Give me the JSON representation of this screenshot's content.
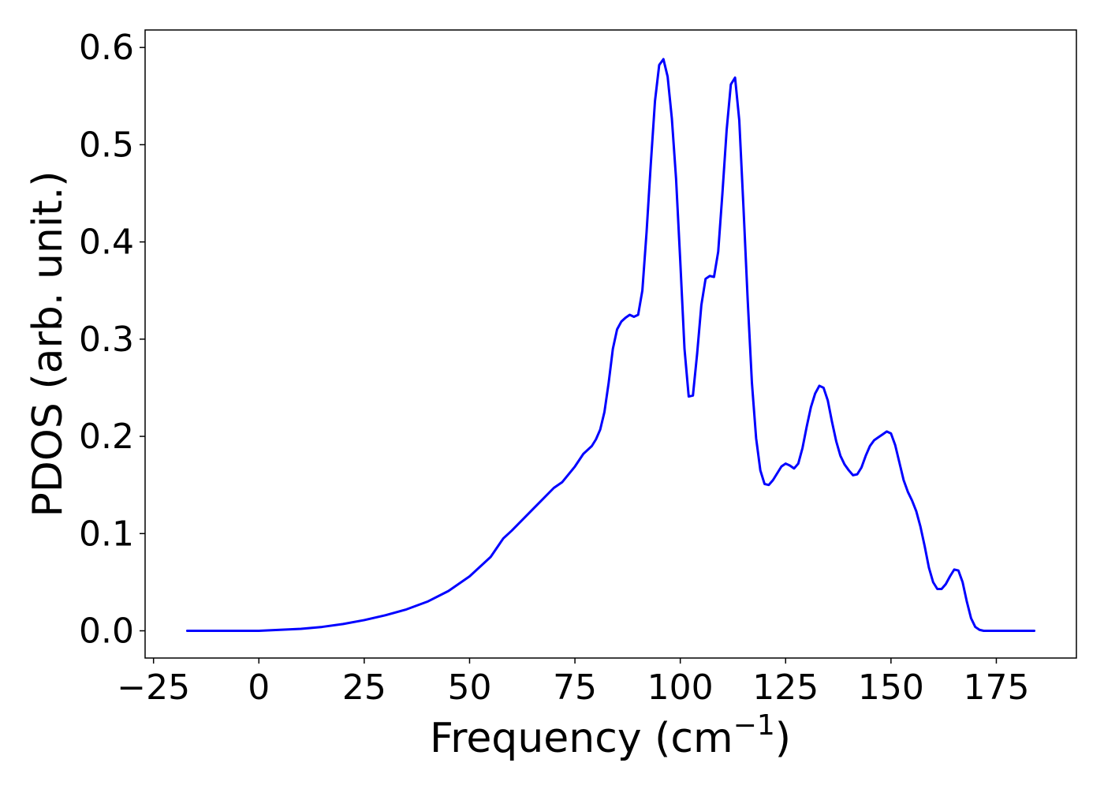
{
  "chart_data": {
    "type": "line",
    "title": "",
    "xlabel": "Frequency (cm",
    "xlabel_sup": "−1",
    "xlabel_close": ")",
    "ylabel": "PDOS (arb. unit.)",
    "xlim": [
      -27,
      194
    ],
    "ylim": [
      -0.028,
      0.618
    ],
    "xticks": [
      -25,
      0,
      25,
      50,
      75,
      100,
      125,
      150,
      175
    ],
    "xtick_labels": [
      "−25",
      "0",
      "25",
      "50",
      "75",
      "100",
      "125",
      "150",
      "175"
    ],
    "yticks": [
      0.0,
      0.1,
      0.2,
      0.3,
      0.4,
      0.5,
      0.6
    ],
    "ytick_labels": [
      "0.0",
      "0.1",
      "0.2",
      "0.3",
      "0.4",
      "0.5",
      "0.6"
    ],
    "grid": false,
    "series": [
      {
        "color": "#0000ff",
        "x": [
          -17,
          -10,
          0,
          5,
          10,
          15,
          20,
          25,
          30,
          35,
          40,
          45,
          50,
          55,
          58,
          60,
          65,
          70,
          72,
          75,
          77,
          79,
          80,
          81,
          82,
          83,
          84,
          85,
          86,
          87,
          88,
          89,
          90,
          91,
          92,
          93,
          94,
          95,
          96,
          97,
          98,
          99,
          100,
          101,
          102,
          103,
          104,
          105,
          106,
          107,
          108,
          109,
          110,
          111,
          112,
          113,
          114,
          115,
          116,
          117,
          118,
          119,
          120,
          121,
          122,
          123,
          124,
          125,
          126,
          127,
          128,
          129,
          130,
          131,
          132,
          133,
          134,
          135,
          136,
          137,
          138,
          139,
          140,
          141,
          142,
          143,
          144,
          145,
          146,
          147,
          148,
          149,
          150,
          151,
          152,
          153,
          154,
          155,
          156,
          157,
          158,
          159,
          160,
          161,
          162,
          163,
          164,
          165,
          166,
          167,
          168,
          169,
          170,
          171,
          172,
          173,
          175,
          180,
          184
        ],
        "y": [
          0.0,
          0.0,
          0.0,
          0.001,
          0.002,
          0.004,
          0.007,
          0.011,
          0.016,
          0.022,
          0.03,
          0.041,
          0.056,
          0.076,
          0.095,
          0.103,
          0.125,
          0.147,
          0.153,
          0.169,
          0.182,
          0.19,
          0.197,
          0.207,
          0.225,
          0.255,
          0.29,
          0.31,
          0.318,
          0.322,
          0.325,
          0.323,
          0.325,
          0.35,
          0.41,
          0.48,
          0.545,
          0.582,
          0.588,
          0.57,
          0.527,
          0.465,
          0.38,
          0.29,
          0.241,
          0.242,
          0.285,
          0.335,
          0.362,
          0.365,
          0.364,
          0.39,
          0.45,
          0.515,
          0.562,
          0.569,
          0.525,
          0.435,
          0.34,
          0.255,
          0.198,
          0.165,
          0.151,
          0.15,
          0.155,
          0.162,
          0.169,
          0.172,
          0.17,
          0.167,
          0.172,
          0.188,
          0.21,
          0.23,
          0.244,
          0.252,
          0.25,
          0.237,
          0.215,
          0.195,
          0.18,
          0.171,
          0.165,
          0.16,
          0.161,
          0.168,
          0.18,
          0.19,
          0.196,
          0.199,
          0.202,
          0.205,
          0.203,
          0.191,
          0.173,
          0.155,
          0.143,
          0.134,
          0.123,
          0.107,
          0.087,
          0.065,
          0.05,
          0.043,
          0.043,
          0.048,
          0.056,
          0.063,
          0.062,
          0.05,
          0.03,
          0.013,
          0.004,
          0.001,
          0.0,
          0.0,
          0.0,
          0.0,
          0.0
        ]
      }
    ]
  }
}
